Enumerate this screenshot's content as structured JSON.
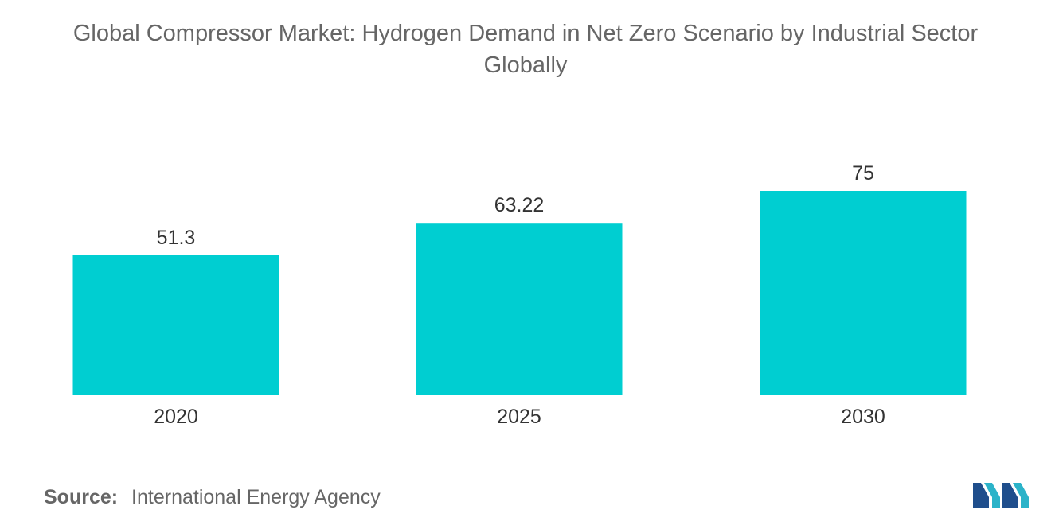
{
  "chart_data": {
    "type": "bar",
    "title": "Global Compressor Market: Hydrogen Demand in Net Zero Scenario by Industrial Sector",
    "subtitle": "Globally",
    "categories": [
      "2020",
      "2025",
      "2030"
    ],
    "values": [
      51.3,
      63.22,
      75
    ],
    "value_labels": [
      "51.3",
      "63.22",
      "75"
    ],
    "xlabel": "",
    "ylabel": "",
    "ylim": [
      0,
      75
    ],
    "grid": false,
    "legend": "none",
    "bar_color": "#00ced1"
  },
  "source": {
    "label": "Source:",
    "text": "International Energy Agency"
  },
  "logo": {
    "icon": "mordor-logo-icon",
    "colors": [
      "#1f4e8c",
      "#2bb3c9"
    ]
  }
}
